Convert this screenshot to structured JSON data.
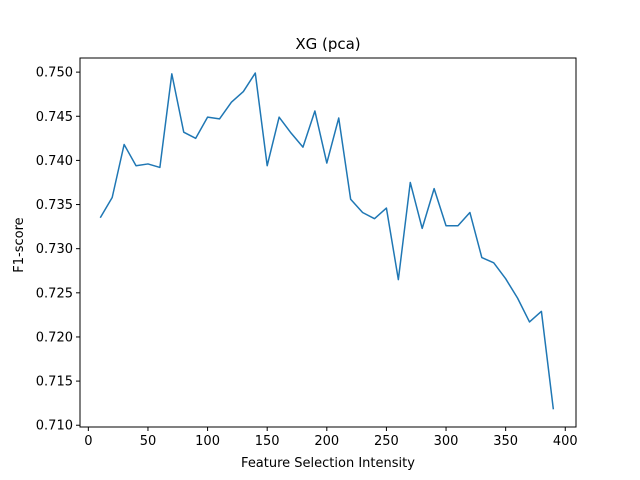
{
  "chart_data": {
    "type": "line",
    "title": "XG (pca)",
    "xlabel": "Feature Selection Intensity",
    "ylabel": "F1-score",
    "xlim": [
      -7,
      409
    ],
    "ylim": [
      0.7098,
      0.7516
    ],
    "xticks": [
      0,
      50,
      100,
      150,
      200,
      250,
      300,
      350,
      400
    ],
    "yticks": [
      0.71,
      0.715,
      0.72,
      0.725,
      0.73,
      0.735,
      0.74,
      0.745,
      0.75
    ],
    "xtick_labels": [
      "0",
      "50",
      "100",
      "150",
      "200",
      "250",
      "300",
      "350",
      "400"
    ],
    "ytick_labels": [
      "0.710",
      "0.715",
      "0.720",
      "0.725",
      "0.730",
      "0.735",
      "0.740",
      "0.745",
      "0.750"
    ],
    "grid": false,
    "series": [
      {
        "color": "#1f77b4",
        "x": [
          10,
          20,
          30,
          40,
          50,
          60,
          70,
          80,
          90,
          100,
          110,
          120,
          130,
          140,
          150,
          160,
          170,
          180,
          190,
          200,
          210,
          220,
          230,
          240,
          250,
          260,
          270,
          280,
          290,
          300,
          310,
          320,
          330,
          340,
          350,
          360,
          370,
          380,
          390
        ],
        "y": [
          0.7335,
          0.7358,
          0.7418,
          0.7394,
          0.7396,
          0.7392,
          0.7498,
          0.7432,
          0.7425,
          0.7449,
          0.7447,
          0.7466,
          0.7478,
          0.7499,
          0.7394,
          0.7449,
          0.7431,
          0.7415,
          0.7456,
          0.7397,
          0.7448,
          0.7356,
          0.7341,
          0.7334,
          0.7346,
          0.7265,
          0.7375,
          0.7323,
          0.7368,
          0.7326,
          0.7326,
          0.7341,
          0.729,
          0.7284,
          0.7266,
          0.7244,
          0.7217,
          0.7229,
          0.7118
        ]
      }
    ]
  }
}
